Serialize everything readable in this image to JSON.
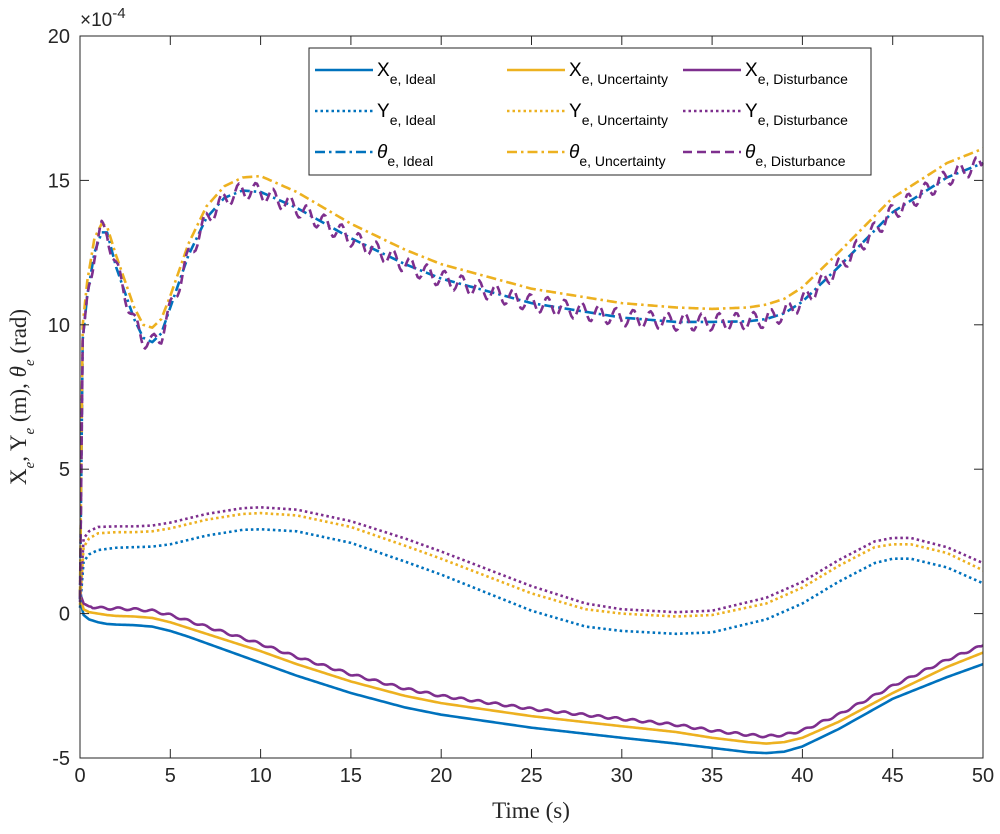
{
  "chart_data": {
    "type": "line",
    "title": "",
    "xlabel": "Time (s)",
    "ylabel": "Xₑ, Yₑ (m), θₑ (rad)",
    "ylabel_parts": {
      "x_main": "X",
      "x_sub": "e",
      "sep1": ", ",
      "y_main": "Y",
      "y_sub": "e",
      "unit1": " (m), ",
      "t_main": "θ",
      "t_sub": "e",
      "unit2": " (rad)"
    },
    "y_exponent_label": "×10",
    "y_exponent_power": "-4",
    "xlim": [
      0,
      50
    ],
    "ylim": [
      -5,
      20
    ],
    "x_ticks": [
      0,
      5,
      10,
      15,
      20,
      25,
      30,
      35,
      40,
      45,
      50
    ],
    "y_ticks": [
      -5,
      0,
      5,
      10,
      15,
      20
    ],
    "grid": false,
    "legend_location": "top-right",
    "colors": {
      "ideal": "#0072BD",
      "uncertainty": "#EDB120",
      "disturbance": "#7E2F8E",
      "axis": "#262626"
    },
    "series": [
      {
        "name": "Xₑ, Ideal",
        "label_main": "X",
        "label_sub": "e, Ideal",
        "group": "ideal",
        "style": "solid",
        "x": [
          0,
          0.2,
          0.5,
          1,
          1.5,
          2,
          3,
          4,
          5,
          6,
          8,
          10,
          12,
          15,
          18,
          20,
          25,
          30,
          33,
          35,
          37,
          38,
          39,
          40,
          42,
          45,
          48,
          50
        ],
        "y": [
          0.5,
          -0.05,
          -0.2,
          -0.3,
          -0.36,
          -0.38,
          -0.4,
          -0.45,
          -0.6,
          -0.8,
          -1.25,
          -1.7,
          -2.15,
          -2.75,
          -3.25,
          -3.5,
          -3.95,
          -4.3,
          -4.5,
          -4.65,
          -4.8,
          -4.83,
          -4.78,
          -4.6,
          -4.0,
          -2.95,
          -2.2,
          -1.75
        ]
      },
      {
        "name": "Xₑ, Uncertainty",
        "label_main": "X",
        "label_sub": "e, Uncertainty",
        "group": "uncertainty",
        "style": "solid",
        "x": [
          0,
          0.2,
          0.5,
          1,
          1.5,
          2,
          3,
          4,
          5,
          6,
          8,
          10,
          12,
          15,
          18,
          20,
          25,
          30,
          33,
          35,
          37,
          38,
          39,
          40,
          42,
          45,
          48,
          50
        ],
        "y": [
          0.6,
          0.15,
          0.05,
          0.0,
          -0.05,
          -0.08,
          -0.1,
          -0.15,
          -0.3,
          -0.5,
          -0.9,
          -1.3,
          -1.75,
          -2.35,
          -2.85,
          -3.1,
          -3.55,
          -3.9,
          -4.1,
          -4.3,
          -4.45,
          -4.5,
          -4.45,
          -4.3,
          -3.75,
          -2.75,
          -1.85,
          -1.35
        ]
      },
      {
        "name": "Xₑ, Disturbance",
        "label_main": "X",
        "label_sub": "e, Disturbance",
        "group": "disturbance",
        "style": "solid",
        "ripple": 0.04,
        "x": [
          0,
          0.2,
          0.5,
          1,
          1.5,
          2,
          3,
          4,
          5,
          6,
          8,
          10,
          12,
          15,
          18,
          20,
          25,
          30,
          33,
          35,
          37,
          38,
          39,
          40,
          42,
          45,
          48,
          50
        ],
        "y": [
          0.7,
          0.35,
          0.25,
          0.2,
          0.18,
          0.18,
          0.15,
          0.1,
          -0.05,
          -0.25,
          -0.65,
          -1.05,
          -1.5,
          -2.1,
          -2.6,
          -2.85,
          -3.3,
          -3.65,
          -3.85,
          -4.05,
          -4.2,
          -4.25,
          -4.2,
          -4.05,
          -3.5,
          -2.5,
          -1.6,
          -1.1
        ]
      },
      {
        "name": "Yₑ, Ideal",
        "label_main": "Y",
        "label_sub": "e, Ideal",
        "group": "ideal",
        "style": "dotted",
        "x": [
          0,
          0.2,
          0.5,
          1,
          2,
          3,
          4,
          5,
          7,
          9,
          10,
          12,
          15,
          18,
          20,
          25,
          28,
          30,
          33,
          35,
          38,
          40,
          42,
          44,
          45,
          46,
          48,
          50
        ],
        "y": [
          0.2,
          1.8,
          2.05,
          2.2,
          2.28,
          2.3,
          2.32,
          2.4,
          2.7,
          2.9,
          2.92,
          2.85,
          2.45,
          1.8,
          1.35,
          0.1,
          -0.45,
          -0.6,
          -0.7,
          -0.65,
          -0.2,
          0.35,
          1.1,
          1.75,
          1.9,
          1.9,
          1.6,
          1.05
        ]
      },
      {
        "name": "Yₑ, Uncertainty",
        "label_main": "Y",
        "label_sub": "e, Uncertainty",
        "group": "uncertainty",
        "style": "dotted",
        "x": [
          0,
          0.2,
          0.5,
          1,
          2,
          3,
          4,
          5,
          7,
          9,
          10,
          12,
          15,
          18,
          20,
          25,
          28,
          30,
          33,
          35,
          38,
          40,
          42,
          44,
          45,
          46,
          48,
          50
        ],
        "y": [
          0.3,
          2.3,
          2.6,
          2.78,
          2.82,
          2.82,
          2.85,
          2.95,
          3.25,
          3.45,
          3.48,
          3.4,
          3.0,
          2.35,
          1.9,
          0.7,
          0.15,
          0.0,
          -0.1,
          -0.05,
          0.35,
          0.9,
          1.65,
          2.3,
          2.4,
          2.4,
          2.1,
          1.5
        ]
      },
      {
        "name": "Yₑ, Disturbance",
        "label_main": "Y",
        "label_sub": "e, Disturbance",
        "group": "disturbance",
        "style": "dotted",
        "x": [
          0,
          0.2,
          0.5,
          1,
          2,
          3,
          4,
          5,
          7,
          9,
          10,
          12,
          15,
          18,
          20,
          25,
          28,
          30,
          33,
          35,
          38,
          40,
          42,
          44,
          45,
          46,
          48,
          50
        ],
        "y": [
          0.4,
          2.6,
          2.85,
          3.0,
          3.02,
          3.02,
          3.05,
          3.15,
          3.45,
          3.65,
          3.68,
          3.6,
          3.2,
          2.6,
          2.15,
          0.95,
          0.35,
          0.15,
          0.05,
          0.1,
          0.55,
          1.1,
          1.85,
          2.5,
          2.62,
          2.62,
          2.3,
          1.75
        ]
      },
      {
        "name": "θₑ, Ideal",
        "label_main": "θ",
        "label_sub": "e, Ideal",
        "group": "ideal",
        "style": "dashdot",
        "x": [
          0,
          0.15,
          0.4,
          0.8,
          1.2,
          1.5,
          2,
          3,
          3.5,
          4,
          4.5,
          5,
          6,
          7,
          8,
          9,
          10,
          12,
          15,
          18,
          20,
          25,
          30,
          33,
          35,
          37,
          38,
          39,
          40,
          42,
          45,
          48,
          50
        ],
        "y": [
          0.5,
          9.5,
          11.0,
          12.5,
          13.2,
          13.2,
          12.0,
          10.2,
          9.55,
          9.4,
          9.7,
          10.6,
          12.4,
          13.7,
          14.4,
          14.65,
          14.6,
          14.05,
          13.0,
          12.1,
          11.6,
          10.75,
          10.25,
          10.1,
          10.1,
          10.12,
          10.2,
          10.4,
          10.8,
          12.0,
          13.9,
          15.1,
          15.6
        ]
      },
      {
        "name": "θₑ, Uncertainty",
        "label_main": "θ",
        "label_sub": "e, Uncertainty",
        "group": "uncertainty",
        "style": "dashdot",
        "x": [
          0,
          0.15,
          0.4,
          0.8,
          1.2,
          1.5,
          2,
          3,
          3.5,
          4,
          4.5,
          5,
          6,
          7,
          8,
          9,
          10,
          12,
          15,
          18,
          20,
          25,
          30,
          33,
          35,
          37,
          38,
          39,
          40,
          42,
          45,
          48,
          50
        ],
        "y": [
          0.6,
          10.0,
          11.5,
          13.0,
          13.5,
          13.4,
          12.4,
          10.6,
          10.0,
          9.9,
          10.2,
          11.0,
          12.8,
          14.1,
          14.8,
          15.1,
          15.15,
          14.6,
          13.5,
          12.6,
          12.1,
          11.25,
          10.75,
          10.6,
          10.55,
          10.6,
          10.7,
          10.9,
          11.3,
          12.5,
          14.4,
          15.6,
          16.1
        ]
      },
      {
        "name": "θₑ, Disturbance",
        "label_main": "θ",
        "label_sub": "e, Disturbance",
        "group": "disturbance",
        "style": "dashed",
        "ripple": 0.3,
        "x": [
          0,
          0.15,
          0.4,
          0.8,
          1.2,
          1.5,
          2,
          3,
          3.5,
          4,
          4.5,
          5,
          6,
          7,
          8,
          9,
          10,
          12,
          15,
          18,
          20,
          25,
          30,
          33,
          35,
          37,
          38,
          39,
          40,
          42,
          45,
          48,
          50
        ],
        "y": [
          0.5,
          9.5,
          11.0,
          12.5,
          13.3,
          13.2,
          12.0,
          10.1,
          9.5,
          9.35,
          9.65,
          10.55,
          12.35,
          13.65,
          14.35,
          14.65,
          14.6,
          14.05,
          13.0,
          12.1,
          11.6,
          10.75,
          10.25,
          10.1,
          10.1,
          10.12,
          10.2,
          10.4,
          10.8,
          12.0,
          13.9,
          15.1,
          15.6
        ]
      }
    ]
  }
}
